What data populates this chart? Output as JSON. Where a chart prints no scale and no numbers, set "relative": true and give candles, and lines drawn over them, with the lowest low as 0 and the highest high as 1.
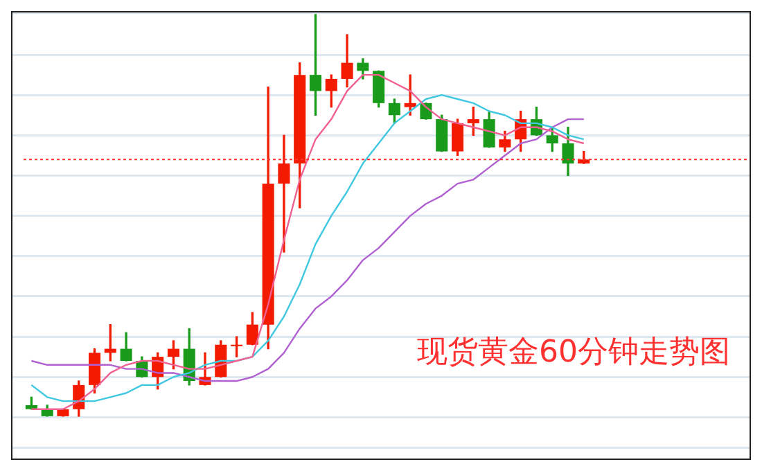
{
  "chart_data": {
    "type": "candlestick",
    "relative": true,
    "tick_labels": false,
    "grid": "y",
    "legend": false,
    "marker": "none",
    "annotations": [
      "现货黄金60分钟走势图"
    ],
    "categories": [
      null,
      null,
      null,
      null,
      null,
      null,
      null,
      null,
      null,
      null,
      null,
      null,
      null,
      null,
      null,
      null,
      null,
      null,
      null,
      null,
      null,
      null,
      null,
      null,
      null,
      null,
      null,
      null,
      null,
      null,
      null,
      null,
      null,
      null,
      null,
      null,
      null,
      null,
      null,
      null,
      null,
      null,
      null,
      null,
      null,
      null
    ],
    "ohlc": [
      [
        0.03,
        0.05,
        0.02,
        0.02
      ],
      [
        0.02,
        0.03,
        0,
        0.0
      ],
      [
        0,
        0.02,
        0,
        0.02
      ],
      [
        0.02,
        0.09,
        0,
        0.08
      ],
      [
        0.08,
        0.17,
        0.06,
        0.16
      ],
      [
        0.16,
        0.23,
        0.14,
        0.17
      ],
      [
        0.17,
        0.21,
        0.14,
        0.14
      ],
      [
        0.14,
        0.15,
        0.1,
        0.1
      ],
      [
        0.1,
        0.16,
        0.07,
        0.15
      ],
      [
        0.15,
        0.19,
        0.12,
        0.17
      ],
      [
        0.17,
        0.22,
        0.08,
        0.09
      ],
      [
        0.08,
        0.16,
        0.08,
        0.1
      ],
      [
        0.1,
        0.19,
        0.1,
        0.18
      ],
      [
        0.18,
        0.2,
        0.15,
        0.18
      ],
      [
        0.18,
        0.26,
        0.18,
        0.23
      ],
      [
        0.23,
        0.82,
        0.17,
        0.58
      ],
      [
        0.58,
        0.7,
        0.41,
        0.63
      ],
      [
        0.63,
        0.88,
        0.52,
        0.85
      ],
      [
        0.85,
        1,
        0.75,
        0.81
      ],
      [
        0.81,
        0.85,
        0.77,
        0.84
      ],
      [
        0.84,
        0.95,
        0.82,
        0.88
      ],
      [
        0.88,
        0.89,
        0.84,
        0.86
      ],
      [
        0.86,
        0.86,
        0.77,
        0.78
      ],
      [
        0.78,
        0.79,
        0.73,
        0.75
      ],
      [
        0.77,
        0.85,
        0.75,
        0.78
      ],
      [
        0.78,
        0.78,
        0.74,
        0.74
      ],
      [
        0.74,
        0.75,
        0.66,
        0.66
      ],
      [
        0.66,
        0.74,
        0.65,
        0.73
      ],
      [
        0.73,
        0.77,
        0.7,
        0.74
      ],
      [
        0.74,
        0.76,
        0.67,
        0.67
      ],
      [
        0.67,
        0.71,
        0.66,
        0.69
      ],
      [
        0.69,
        0.76,
        0.66,
        0.74
      ],
      [
        0.74,
        0.77,
        0.7,
        0.7
      ],
      [
        0.7,
        0.72,
        0.66,
        0.68
      ],
      [
        0.68,
        0.72,
        0.6,
        0.63
      ],
      [
        0.63,
        0.66,
        0.63,
        0.64
      ],
      null,
      null,
      null,
      null,
      null,
      null,
      null,
      null,
      null,
      null
    ],
    "colors": [
      "#1a9a1a",
      "#1a9a1a",
      "#f21a00",
      "#f21a00",
      "#f21a00",
      "#f21a00",
      "#1a9a1a",
      "#1a9a1a",
      "#f21a00",
      "#f21a00",
      "#1a9a1a",
      "#f21a00",
      "#f21a00",
      "#f21a00",
      "#f21a00",
      "#f21a00",
      "#f21a00",
      "#f21a00",
      "#1a9a1a",
      "#f21a00",
      "#f21a00",
      "#1a9a1a",
      "#1a9a1a",
      "#1a9a1a",
      "#f21a00",
      "#1a9a1a",
      "#1a9a1a",
      "#f21a00",
      "#f21a00",
      "#1a9a1a",
      "#f21a00",
      "#f21a00",
      "#1a9a1a",
      "#1a9a1a",
      "#1a9a1a",
      "#f21a00",
      null,
      null,
      null,
      null,
      null,
      null,
      null,
      null,
      null,
      null
    ],
    "series": [
      {
        "type": "line",
        "color": "#f06090",
        "values": [
          0.02,
          0.02,
          0.02,
          0.04,
          0.07,
          0.11,
          0.13,
          0.14,
          0.14,
          0.13,
          0.12,
          0.12,
          0.13,
          0.14,
          0.15,
          0.28,
          0.44,
          0.59,
          0.69,
          0.74,
          0.81,
          0.85,
          0.85,
          0.83,
          0.81,
          0.77,
          0.74,
          0.73,
          0.72,
          0.71,
          0.7,
          0.72,
          0.72,
          0.71,
          0.69,
          0.68,
          null,
          null,
          null,
          null,
          null,
          null,
          null,
          null,
          null,
          null
        ]
      },
      {
        "type": "line",
        "color": "#40c8e0",
        "values": [
          0.08,
          0.05,
          0.04,
          0.04,
          0.04,
          0.05,
          0.06,
          0.08,
          0.08,
          0.1,
          0.11,
          0.13,
          0.14,
          0.14,
          0.15,
          0.19,
          0.25,
          0.33,
          0.43,
          0.5,
          0.56,
          0.63,
          0.68,
          0.73,
          0.76,
          0.79,
          0.8,
          0.79,
          0.78,
          0.76,
          0.75,
          0.73,
          0.73,
          0.72,
          0.7,
          0.69,
          null,
          null,
          null,
          null,
          null,
          null,
          null,
          null,
          null,
          null
        ]
      },
      {
        "type": "line",
        "color": "#b060d0",
        "values": [
          0.14,
          0.13,
          0.13,
          0.13,
          0.13,
          0.13,
          0.12,
          0.12,
          0.11,
          0.11,
          0.1,
          0.09,
          0.09,
          0.09,
          0.1,
          0.12,
          0.16,
          0.22,
          0.27,
          0.3,
          0.34,
          0.39,
          0.42,
          0.46,
          0.5,
          0.53,
          0.55,
          0.58,
          0.59,
          0.62,
          0.65,
          0.68,
          0.69,
          0.72,
          0.74,
          0.74,
          null,
          null,
          null,
          null,
          null,
          null,
          null,
          null,
          null,
          null
        ]
      }
    ],
    "ref_lines": [
      {
        "axis": "y",
        "value": 0.64,
        "color": "#ff3030",
        "line_style": "dotted"
      }
    ]
  }
}
